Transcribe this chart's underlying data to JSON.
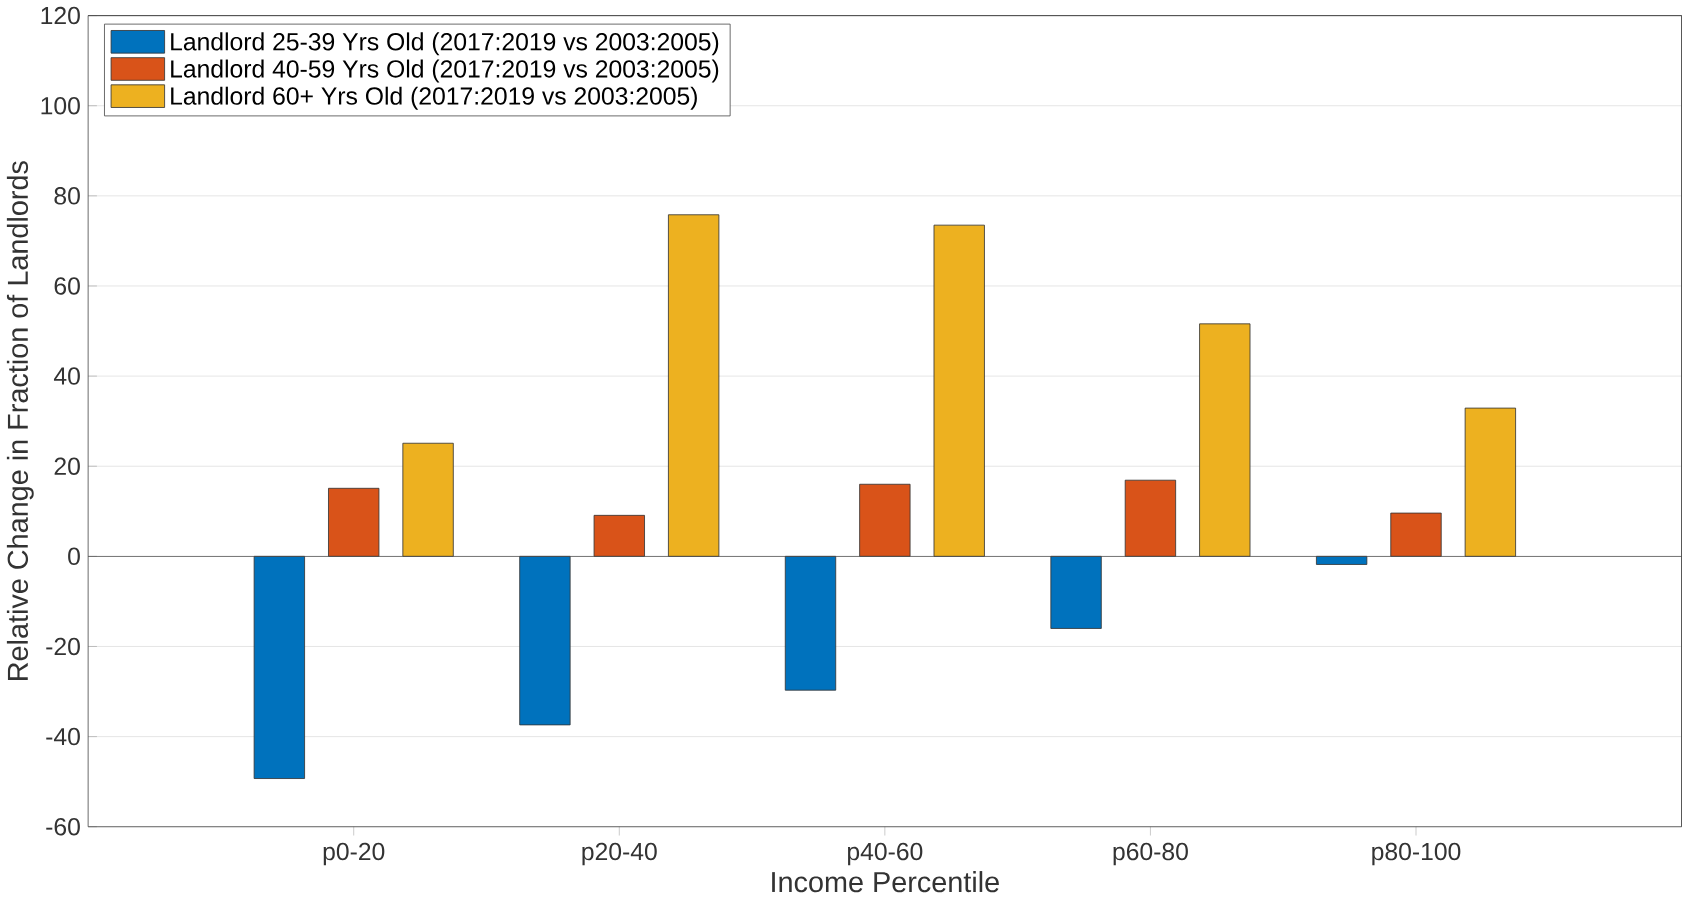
{
  "chart_data": {
    "type": "bar",
    "xlabel": "Income Percentile",
    "ylabel": "Relative Change in Fraction of Landlords",
    "categories": [
      "p0-20",
      "p20-40",
      "p40-60",
      "p60-80",
      "p80-100"
    ],
    "series": [
      {
        "name": "Landlord 25-39 Yrs Old (2017:2019 vs 2003:2005)",
        "color": "#0072bd",
        "values": [
          -49.3,
          -37.4,
          -29.7,
          -16,
          -1.8
        ]
      },
      {
        "name": "Landlord 40-59 Yrs Old (2017:2019 vs 2003:2005)",
        "color": "#d95319",
        "values": [
          15.1,
          9.1,
          16,
          16.9,
          9.6
        ]
      },
      {
        "name": "Landlord 60+ Yrs Old    (2017:2019 vs 2003:2005)",
        "color": "#edb120",
        "values": [
          25.1,
          75.8,
          73.5,
          51.6,
          32.9
        ]
      }
    ],
    "ylim": [
      -60,
      120
    ],
    "yticks": [
      -60,
      -40,
      -20,
      0,
      20,
      40,
      60,
      80,
      100,
      120
    ],
    "grid": "y",
    "legend": "top left"
  }
}
